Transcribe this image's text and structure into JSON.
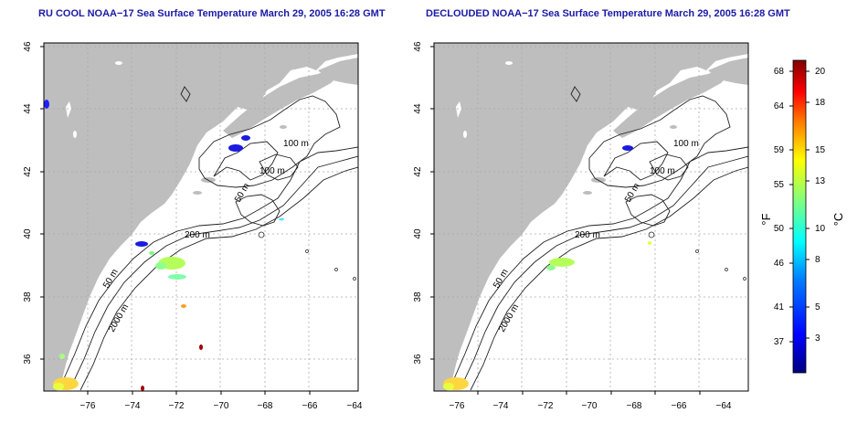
{
  "left_panel": {
    "title": "RU COOL NOAA−17 Sea Surface Temperature March 29, 2005 16:28 GMT"
  },
  "right_panel": {
    "title": "DECLOUDED NOAA−17 Sea Surface Temperature March 29, 2005 16:28 GMT"
  },
  "axes": {
    "lon_ticks": [
      "−76",
      "−74",
      "−72",
      "−70",
      "−68",
      "−66",
      "−64"
    ],
    "lat_ticks": [
      "36",
      "38",
      "40",
      "42",
      "44",
      "46"
    ],
    "lon_range": [
      -77.2,
      -63.0
    ],
    "lat_range": [
      35.0,
      46.2
    ]
  },
  "isobath_labels": {
    "m100a": "100 m",
    "m100b": "100 m",
    "m50a": "50 m",
    "m200": "200 m",
    "m50b": "50 m",
    "m2000": "2000 m"
  },
  "colorbar": {
    "f_label": "°F",
    "c_label": "°C",
    "f_ticks": [
      "68",
      "64",
      "59",
      "55",
      "50",
      "46",
      "41",
      "37"
    ],
    "c_ticks": [
      "20",
      "18",
      "15",
      "13",
      "10",
      "8",
      "5",
      "3"
    ],
    "colors": [
      "#00007f",
      "#0000ff",
      "#007fff",
      "#00ffff",
      "#7fff7f",
      "#ffff00",
      "#ff7f00",
      "#ff0000",
      "#7f0000"
    ]
  },
  "colors": {
    "land": "#bebebe",
    "ocean": "#ffffff",
    "title": "#1a1aa6",
    "contour": "#222222"
  }
}
